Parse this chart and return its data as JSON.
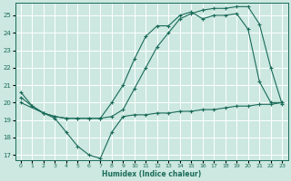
{
  "title": "",
  "xlabel": "Humidex (Indice chaleur)",
  "bg_color": "#cce8e0",
  "grid_color": "#ffffff",
  "line_color": "#1a6b5a",
  "xlim": [
    -0.5,
    23.5
  ],
  "ylim": [
    16.7,
    25.7
  ],
  "yticks": [
    17,
    18,
    19,
    20,
    21,
    22,
    23,
    24,
    25
  ],
  "xticks": [
    0,
    1,
    2,
    3,
    4,
    5,
    6,
    7,
    8,
    9,
    10,
    11,
    12,
    13,
    14,
    15,
    16,
    17,
    18,
    19,
    20,
    21,
    22,
    23
  ],
  "line1_x": [
    0,
    1,
    2,
    3,
    4,
    5,
    6,
    7,
    8,
    9,
    10,
    11,
    12,
    13,
    14,
    15,
    16,
    17,
    18,
    19,
    20,
    21,
    22,
    23
  ],
  "line1_y": [
    20.6,
    19.8,
    19.4,
    19.1,
    18.3,
    17.5,
    17.0,
    16.8,
    18.3,
    19.2,
    19.3,
    19.3,
    19.4,
    19.4,
    19.5,
    19.5,
    19.6,
    19.6,
    19.7,
    19.8,
    19.8,
    19.9,
    19.9,
    20.0
  ],
  "line2_x": [
    0,
    1,
    2,
    3,
    4,
    5,
    6,
    7,
    8,
    9,
    10,
    11,
    12,
    13,
    14,
    15,
    16,
    17,
    18,
    19,
    20,
    21,
    22,
    23
  ],
  "line2_y": [
    20.3,
    19.8,
    19.4,
    19.2,
    19.1,
    19.1,
    19.1,
    19.1,
    19.2,
    19.6,
    20.8,
    22.0,
    23.2,
    24.0,
    24.8,
    25.1,
    25.3,
    25.4,
    25.4,
    25.5,
    25.5,
    24.5,
    22.0,
    19.9
  ],
  "line3_x": [
    0,
    2,
    3,
    4,
    5,
    6,
    7,
    8,
    9,
    10,
    11,
    12,
    13,
    14,
    15,
    16,
    17,
    18,
    19,
    20,
    21,
    22,
    23
  ],
  "line3_y": [
    20.0,
    19.4,
    19.2,
    19.1,
    19.1,
    19.1,
    19.1,
    20.0,
    21.0,
    22.5,
    23.8,
    24.4,
    24.4,
    25.0,
    25.2,
    24.8,
    25.0,
    25.0,
    25.1,
    24.2,
    21.2,
    20.0,
    20.0
  ]
}
